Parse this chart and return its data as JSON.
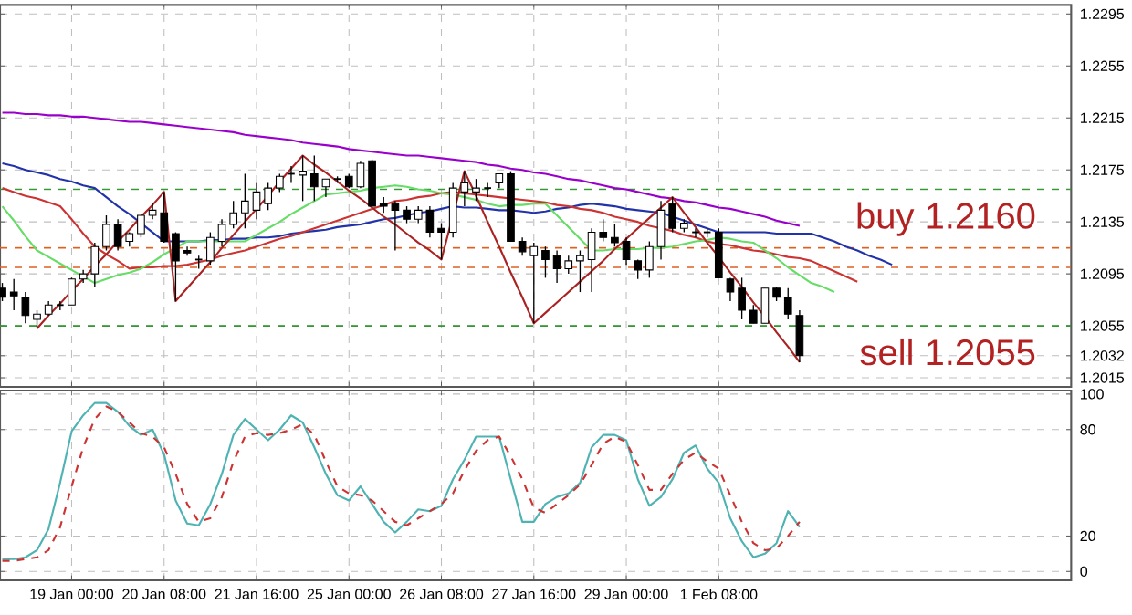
{
  "chart_data": [
    {
      "type": "candlestick",
      "categories": [
        null,
        null,
        null,
        null,
        null,
        null,
        null,
        null,
        null,
        null,
        null,
        null,
        null,
        null,
        null,
        null,
        null,
        null,
        null,
        null,
        null,
        null,
        null,
        null,
        null,
        null,
        null,
        null,
        null,
        null,
        null,
        null,
        null,
        null,
        null,
        null,
        null,
        null,
        null,
        null,
        null,
        null,
        null,
        null,
        null,
        null,
        null,
        null,
        null,
        null,
        null,
        null,
        null,
        null,
        null,
        null,
        null,
        null,
        null,
        null,
        null,
        null,
        null,
        null,
        null,
        null,
        null,
        null,
        null,
        null,
        null,
        null,
        null,
        null,
        null,
        null,
        null,
        null
      ],
      "ohlc": [
        [
          1.2084,
          1.2088,
          1.2074,
          1.2077
        ],
        [
          1.2081,
          1.2091,
          1.2067,
          1.2078
        ],
        [
          1.2077,
          1.2081,
          1.2057,
          1.2063
        ],
        [
          1.206,
          1.2067,
          1.2053,
          1.2064
        ],
        [
          1.2064,
          1.2074,
          1.2063,
          1.2071
        ],
        [
          1.2071,
          1.2074,
          1.2067,
          1.2071
        ],
        [
          1.2071,
          1.2092,
          1.2071,
          1.2091
        ],
        [
          1.2091,
          1.2098,
          1.2088,
          1.2095
        ],
        [
          1.2095,
          1.2119,
          1.2085,
          1.2116
        ],
        [
          1.2116,
          1.214,
          1.2113,
          1.2133
        ],
        [
          1.2133,
          1.2137,
          1.2113,
          1.2116
        ],
        [
          1.212,
          1.2127,
          1.2116,
          1.2126
        ],
        [
          1.2126,
          1.214,
          1.2123,
          1.214
        ],
        [
          1.214,
          1.2149,
          1.2137,
          1.2144
        ],
        [
          1.2142,
          1.2158,
          1.2119,
          1.212
        ],
        [
          1.2126,
          1.2127,
          1.2074,
          1.2105
        ],
        [
          1.2113,
          1.2116,
          1.2109,
          1.2111
        ],
        [
          1.2106,
          1.2109,
          1.2099,
          1.2106
        ],
        [
          1.2105,
          1.2127,
          1.2102,
          1.2123
        ],
        [
          1.212,
          1.2137,
          1.2116,
          1.2133
        ],
        [
          1.2133,
          1.2151,
          1.213,
          1.2142
        ],
        [
          1.2142,
          1.2172,
          1.213,
          1.2151
        ],
        [
          1.2144,
          1.2165,
          1.2137,
          1.2158
        ],
        [
          1.2149,
          1.2165,
          1.2144,
          1.2161
        ],
        [
          1.2161,
          1.2172,
          1.2158,
          1.217
        ],
        [
          1.2172,
          1.2178,
          1.2165,
          1.2172
        ],
        [
          1.2171,
          1.2186,
          1.2151,
          1.2174
        ],
        [
          1.2172,
          1.2186,
          1.2151,
          1.2162
        ],
        [
          1.2162,
          1.2168,
          1.2154,
          1.2168
        ],
        [
          1.2168,
          1.217,
          1.2165,
          1.2168
        ],
        [
          1.217,
          1.2172,
          1.2161,
          1.2162
        ],
        [
          1.2162,
          1.2182,
          1.2161,
          1.218
        ],
        [
          1.2182,
          1.2183,
          1.2147,
          1.2147
        ],
        [
          1.2149,
          1.2154,
          1.2142,
          1.2147
        ],
        [
          1.2149,
          1.2151,
          1.2113,
          1.2144
        ],
        [
          1.2144,
          1.2147,
          1.2134,
          1.2137
        ],
        [
          1.2137,
          1.2147,
          1.2134,
          1.2144
        ],
        [
          1.2144,
          1.2147,
          1.2123,
          1.2127
        ],
        [
          1.213,
          1.2134,
          1.2106,
          1.2127
        ],
        [
          1.2127,
          1.2165,
          1.2123,
          1.2161
        ],
        [
          1.2158,
          1.2174,
          1.2147,
          1.2165
        ],
        [
          1.2158,
          1.2168,
          1.2151,
          1.2161
        ],
        [
          1.2161,
          1.2165,
          1.2154,
          1.2161
        ],
        [
          1.2165,
          1.2172,
          1.2161,
          1.2172
        ],
        [
          1.2172,
          1.2174,
          1.212,
          1.212
        ],
        [
          1.212,
          1.2123,
          1.2109,
          1.2112
        ],
        [
          1.2109,
          1.2119,
          1.2057,
          1.2116
        ],
        [
          1.2113,
          1.2116,
          1.2092,
          1.2106
        ],
        [
          1.2109,
          1.2113,
          1.2088,
          1.2099
        ],
        [
          1.2099,
          1.2109,
          1.2095,
          1.2105
        ],
        [
          1.2105,
          1.2113,
          1.2081,
          1.2109
        ],
        [
          1.2106,
          1.213,
          1.2081,
          1.2127
        ],
        [
          1.2127,
          1.2137,
          1.212,
          1.2123
        ],
        [
          1.2123,
          1.2133,
          1.2116,
          1.2119
        ],
        [
          1.212,
          1.2123,
          1.2102,
          1.2106
        ],
        [
          1.2105,
          1.2106,
          1.2091,
          1.2098
        ],
        [
          1.2098,
          1.212,
          1.2092,
          1.2116
        ],
        [
          1.2116,
          1.2151,
          1.2106,
          1.2144
        ],
        [
          1.2149,
          1.2154,
          1.2127,
          1.213
        ],
        [
          1.213,
          1.2137,
          1.2127,
          1.2134
        ],
        [
          1.2127,
          1.213,
          1.2123,
          1.2127
        ],
        [
          1.2127,
          1.213,
          1.2123,
          1.2127
        ],
        [
          1.2127,
          1.213,
          1.2092,
          1.2092
        ],
        [
          1.2091,
          1.2092,
          1.2074,
          1.2081
        ],
        [
          1.2084,
          1.2092,
          1.206,
          1.2067
        ],
        [
          1.2067,
          1.2071,
          1.2057,
          1.2057
        ],
        [
          1.2057,
          1.2084,
          1.2057,
          1.2084
        ],
        [
          1.2084,
          1.2085,
          1.2074,
          1.2077
        ],
        [
          1.2077,
          1.2084,
          1.206,
          1.2064
        ],
        [
          1.2063,
          1.2067,
          1.2027,
          1.2032
        ],
        null,
        null,
        null,
        null,
        null,
        null,
        null,
        null
      ],
      "series": [
        {
          "type": "line",
          "color": "#9a00cc",
          "values": [
            1.2219,
            1.2219,
            1.2218,
            1.2218,
            1.2217,
            1.2217,
            1.2216,
            1.2216,
            1.2215,
            1.2214,
            1.2213,
            1.2212,
            1.2212,
            1.2211,
            1.221,
            1.2209,
            1.2208,
            1.2207,
            1.2206,
            1.2205,
            1.2204,
            1.2202,
            1.2201,
            1.22,
            1.2199,
            1.2198,
            1.2196,
            1.2195,
            1.2194,
            1.2193,
            1.2191,
            1.219,
            1.2189,
            1.2188,
            1.2187,
            1.2186,
            1.2186,
            1.2185,
            1.2184,
            1.2183,
            1.2182,
            1.2181,
            1.2179,
            1.2178,
            1.2176,
            1.2175,
            1.2173,
            1.2172,
            1.217,
            1.2168,
            1.2167,
            1.2165,
            1.2163,
            1.2161,
            1.216,
            1.2158,
            1.2156,
            1.2154,
            1.2153,
            1.2151,
            1.215,
            1.2148,
            1.2146,
            1.2145,
            1.2143,
            1.2141,
            1.2139,
            1.2136,
            1.2134,
            1.2132,
            null,
            null,
            null,
            null,
            null,
            null,
            null,
            null
          ]
        },
        {
          "type": "line",
          "color": "#2233aa",
          "values": [
            1.218,
            1.2178,
            1.2175,
            1.2173,
            1.2171,
            1.2168,
            1.2166,
            1.2163,
            1.2161,
            1.2154,
            1.2147,
            1.2141,
            1.2134,
            1.2127,
            1.212,
            1.212,
            1.212,
            1.212,
            1.2121,
            1.2121,
            1.2122,
            1.2122,
            1.2123,
            1.2123,
            1.2124,
            1.2126,
            1.2127,
            1.2128,
            1.2129,
            1.2131,
            1.2132,
            1.2133,
            1.2135,
            1.2137,
            1.2138,
            1.214,
            1.2142,
            1.2143,
            1.2145,
            1.2147,
            1.2146,
            1.2146,
            1.2145,
            1.2144,
            1.2144,
            1.2143,
            1.2142,
            1.2143,
            1.2145,
            1.2146,
            1.2148,
            1.2149,
            1.2148,
            1.2147,
            1.2145,
            1.2144,
            1.2143,
            1.2142,
            1.2139,
            1.2136,
            1.2133,
            1.213,
            1.2127,
            1.2127,
            1.2127,
            1.2127,
            1.2127,
            1.2126,
            1.2126,
            1.2126,
            1.2126,
            1.2123,
            1.212,
            1.2116,
            1.2113,
            1.2109,
            1.2106,
            1.2102
          ]
        },
        {
          "type": "line",
          "color": "#cc3333",
          "values": [
            1.2161,
            1.2158,
            1.2155,
            1.2153,
            1.215,
            1.2147,
            1.2137,
            1.2126,
            1.2116,
            1.211,
            1.2105,
            1.2099,
            1.21,
            1.21,
            1.2101,
            1.2101,
            1.2102,
            1.2104,
            1.2106,
            1.2109,
            1.2111,
            1.2113,
            1.2116,
            1.2119,
            1.2122,
            1.2124,
            1.2127,
            1.213,
            1.2133,
            1.2136,
            1.2139,
            1.2142,
            1.2145,
            1.2148,
            1.2151,
            1.2152,
            1.2154,
            1.2155,
            1.2157,
            1.2158,
            1.2157,
            1.2156,
            1.2155,
            1.2154,
            1.2153,
            1.2152,
            1.2151,
            1.215,
            1.2148,
            1.2147,
            1.2145,
            1.2144,
            1.2142,
            1.2139,
            1.2137,
            1.2135,
            1.2132,
            1.213,
            1.2128,
            1.2125,
            1.2123,
            1.212,
            1.2118,
            1.2117,
            1.2115,
            1.2113,
            1.2112,
            1.211,
            1.2108,
            1.2107,
            1.2105,
            1.2101,
            1.2097,
            1.2093,
            1.2089,
            null,
            null,
            null
          ]
        },
        {
          "type": "line",
          "color": "#66dd66",
          "values": [
            1.2147,
            1.2136,
            1.2124,
            1.2113,
            1.2108,
            1.2103,
            1.2098,
            1.2093,
            1.2088,
            1.2091,
            1.2094,
            1.2096,
            1.2099,
            1.2104,
            1.211,
            1.2115,
            1.212,
            1.212,
            1.212,
            1.212,
            1.212,
            1.212,
            1.2125,
            1.213,
            1.2135,
            1.2141,
            1.2146,
            1.2151,
            1.2156,
            1.2157,
            1.2158,
            1.2159,
            1.2161,
            1.2162,
            1.2163,
            1.2162,
            1.216,
            1.2159,
            1.2157,
            1.2156,
            1.2154,
            1.2152,
            1.2149,
            1.2147,
            1.2148,
            1.2148,
            1.2149,
            1.2149,
            1.214,
            1.2131,
            1.2122,
            1.2113,
            1.2113,
            1.2114,
            1.2114,
            1.2114,
            1.2115,
            1.2115,
            1.2116,
            1.2118,
            1.212,
            1.2121,
            1.2123,
            1.2122,
            1.212,
            1.2119,
            1.2113,
            1.2107,
            1.21,
            1.2094,
            1.2088,
            1.2085,
            1.2081,
            null,
            null,
            null,
            null,
            null
          ]
        },
        {
          "type": "line",
          "color": "#aa2222",
          "values": [
            null,
            null,
            null,
            1.2053,
            1.2063,
            1.2072,
            1.2082,
            1.2091,
            1.2101,
            1.211,
            1.212,
            1.2129,
            1.2139,
            1.2148,
            1.2158,
            1.2074,
            1.2084,
            1.2094,
            1.2104,
            1.2115,
            1.2125,
            1.2135,
            1.2145,
            1.2155,
            1.2166,
            1.2176,
            1.2186,
            1.2179,
            1.2173,
            1.2166,
            1.2159,
            1.2153,
            1.2146,
            1.2139,
            1.2133,
            1.2126,
            1.2119,
            1.2113,
            1.2106,
            1.214,
            1.2174,
            1.2155,
            1.2135,
            1.2116,
            1.2096,
            1.2077,
            1.2057,
            1.2065,
            1.2073,
            1.2081,
            1.2089,
            1.2097,
            1.2105,
            1.2114,
            1.2122,
            1.213,
            1.2138,
            1.2146,
            1.2154,
            1.2142,
            1.2131,
            1.2119,
            1.2108,
            1.2096,
            1.2085,
            1.2073,
            1.2062,
            1.205,
            1.2039,
            1.2027,
            null,
            null,
            null,
            null,
            null,
            null,
            null,
            null
          ]
        }
      ],
      "ref_lines": [
        {
          "axis": "y",
          "value": 1.216,
          "label": "buy 1.2160",
          "color": "#339933",
          "line_style": "dashed"
        },
        {
          "axis": "y",
          "value": 1.2055,
          "label": "sell 1.2055",
          "color": "#339933",
          "line_style": "dashed"
        },
        {
          "axis": "y",
          "value": 1.2115,
          "color": "#e06020",
          "line_style": "dashed"
        },
        {
          "axis": "y",
          "value": 1.21,
          "color": "#e06020",
          "line_style": "dashed"
        }
      ],
      "ylim": [
        1.2008,
        1.2302
      ],
      "yticks": [
        1.2015,
        1.2032,
        1.2055,
        1.2095,
        1.2135,
        1.2175,
        1.2215,
        1.2255,
        1.2295
      ],
      "grid": true,
      "tick_labels": "y"
    },
    {
      "type": "line",
      "categories": [
        null,
        null,
        null,
        null,
        null,
        null,
        "19 Jan 00:00",
        null,
        null,
        null,
        null,
        null,
        null,
        null,
        "20 Jan 08:00",
        null,
        null,
        null,
        null,
        null,
        null,
        null,
        "21 Jan 16:00",
        null,
        null,
        null,
        null,
        null,
        null,
        null,
        "25 Jan 00:00",
        null,
        null,
        null,
        null,
        null,
        null,
        null,
        "26 Jan 08:00",
        null,
        null,
        null,
        null,
        null,
        null,
        null,
        "27 Jan 16:00",
        null,
        null,
        null,
        null,
        null,
        null,
        null,
        "29 Jan 00:00",
        null,
        null,
        null,
        null,
        null,
        null,
        null,
        "1 Feb 08:00",
        null,
        null,
        null,
        null,
        null,
        null,
        null,
        null,
        null,
        null,
        null,
        null,
        null,
        null,
        null
      ],
      "series": [
        {
          "color": "#4fb3b3",
          "line_style": "solid",
          "values": [
            7,
            7,
            8,
            12,
            24,
            50,
            79,
            88,
            95,
            95,
            90,
            82,
            77,
            80,
            66,
            40,
            27,
            26,
            38,
            55,
            77,
            86,
            80,
            74,
            80,
            88,
            84,
            70,
            55,
            43,
            40,
            48,
            38,
            28,
            22,
            28,
            35,
            34,
            37,
            52,
            63,
            76,
            76,
            76,
            52,
            28,
            28,
            38,
            42,
            44,
            50,
            70,
            77,
            77,
            74,
            52,
            37,
            42,
            52,
            67,
            71,
            58,
            50,
            30,
            17,
            8,
            10,
            16,
            34,
            25,
            null,
            null,
            null,
            null,
            null,
            null,
            null,
            null
          ]
        },
        {
          "color": "#cc3333",
          "line_style": "dashed",
          "values": [
            6,
            6,
            7,
            8,
            12,
            25,
            48,
            70,
            86,
            93,
            90,
            84,
            78,
            76,
            70,
            55,
            38,
            28,
            30,
            42,
            62,
            76,
            78,
            77,
            78,
            80,
            83,
            77,
            62,
            48,
            44,
            43,
            40,
            34,
            28,
            26,
            30,
            34,
            38,
            44,
            57,
            68,
            74,
            76,
            65,
            52,
            36,
            33,
            38,
            43,
            49,
            60,
            72,
            76,
            73,
            60,
            46,
            46,
            55,
            63,
            67,
            62,
            58,
            43,
            28,
            16,
            12,
            13,
            20,
            28,
            null,
            null,
            null,
            null,
            null,
            null,
            null,
            null
          ]
        }
      ],
      "ylim": [
        -5,
        102
      ],
      "yticks": [
        0,
        20,
        80,
        100
      ],
      "grid": true
    }
  ]
}
